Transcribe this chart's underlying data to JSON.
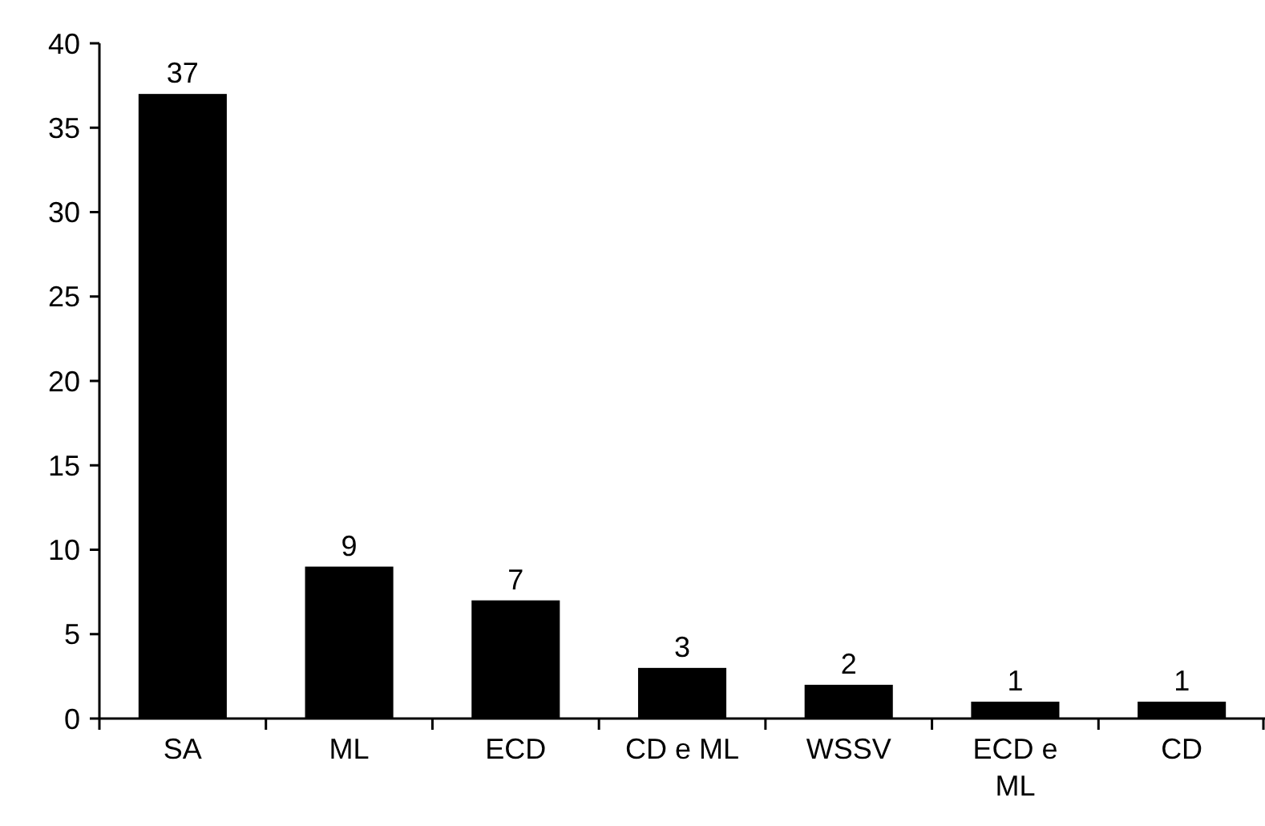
{
  "chart_data": {
    "type": "bar",
    "categories": [
      "SA",
      "ML",
      "ECD",
      "CD e ML",
      "WSSV",
      "ECD e ML",
      "CD"
    ],
    "values": [
      37,
      9,
      7,
      3,
      2,
      1,
      1
    ],
    "color": "#000000",
    "ylim": [
      0,
      40
    ],
    "yticks": [
      0,
      5,
      10,
      15,
      20,
      25,
      30,
      35,
      40
    ],
    "data_labels": true,
    "grid": false
  }
}
